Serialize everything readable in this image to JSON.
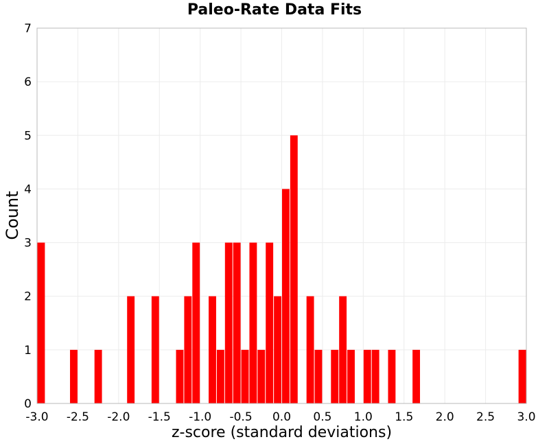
{
  "chart_data": {
    "type": "bar",
    "title": "Paleo-Rate Data Fits",
    "xlabel": "z-score (standard deviations)",
    "ylabel": "Count",
    "xlim": [
      -3.0,
      3.0
    ],
    "ylim": [
      0,
      7
    ],
    "grid": true,
    "bar_color": "#ff0000",
    "bin_width": 0.1,
    "bins": [
      {
        "center": -2.95,
        "count": 3
      },
      {
        "center": -2.55,
        "count": 1
      },
      {
        "center": -2.25,
        "count": 1
      },
      {
        "center": -1.85,
        "count": 2
      },
      {
        "center": -1.55,
        "count": 2
      },
      {
        "center": -1.25,
        "count": 1
      },
      {
        "center": -1.15,
        "count": 2
      },
      {
        "center": -1.05,
        "count": 3
      },
      {
        "center": -0.85,
        "count": 2
      },
      {
        "center": -0.75,
        "count": 1
      },
      {
        "center": -0.65,
        "count": 3
      },
      {
        "center": -0.55,
        "count": 3
      },
      {
        "center": -0.45,
        "count": 1
      },
      {
        "center": -0.35,
        "count": 3
      },
      {
        "center": -0.25,
        "count": 1
      },
      {
        "center": -0.15,
        "count": 3
      },
      {
        "center": -0.05,
        "count": 2
      },
      {
        "center": 0.05,
        "count": 4
      },
      {
        "center": 0.15,
        "count": 5
      },
      {
        "center": 0.35,
        "count": 2
      },
      {
        "center": 0.45,
        "count": 1
      },
      {
        "center": 0.65,
        "count": 1
      },
      {
        "center": 0.75,
        "count": 2
      },
      {
        "center": 0.85,
        "count": 1
      },
      {
        "center": 1.05,
        "count": 1
      },
      {
        "center": 1.15,
        "count": 1
      },
      {
        "center": 1.35,
        "count": 1
      },
      {
        "center": 1.65,
        "count": 1
      },
      {
        "center": 2.95,
        "count": 1
      }
    ],
    "xticks": [
      "-3.0",
      "-2.5",
      "-2.0",
      "-1.5",
      "-1.0",
      "-0.5",
      "0.0",
      "0.5",
      "1.0",
      "1.5",
      "2.0",
      "2.5",
      "3.0"
    ],
    "yticks": [
      "0",
      "1",
      "2",
      "3",
      "4",
      "5",
      "6",
      "7"
    ]
  }
}
